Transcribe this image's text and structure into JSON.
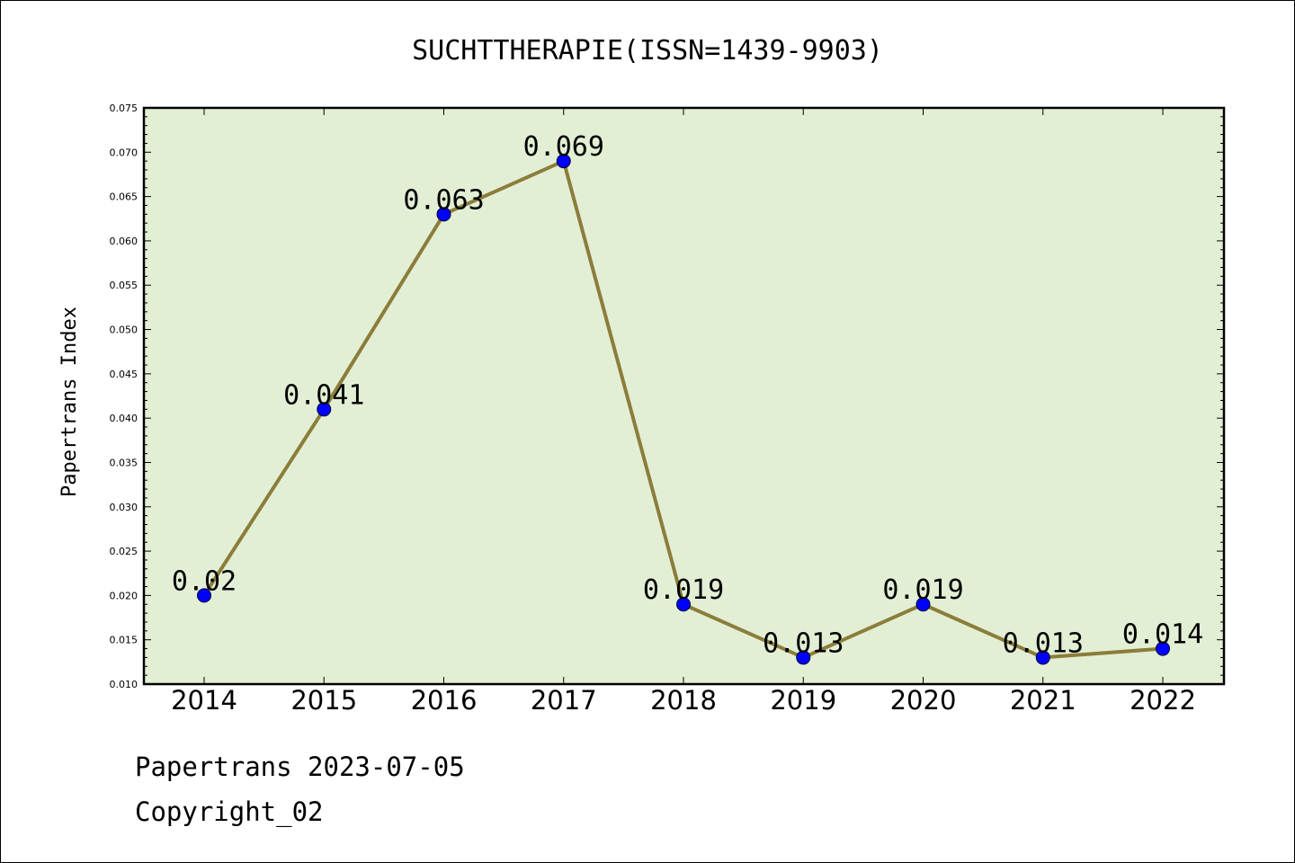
{
  "footer": {
    "line1": "Papertrans 2023-07-05",
    "line2": "Copyright_02"
  },
  "chart_data": {
    "type": "line",
    "title": "SUCHTTHERAPIE(ISSN=1439-9903)",
    "xlabel": "",
    "ylabel": "Papertrans Index",
    "categories": [
      "2014",
      "2015",
      "2016",
      "2017",
      "2018",
      "2019",
      "2020",
      "2021",
      "2022"
    ],
    "series": [
      {
        "values": [
          0.02,
          0.041,
          0.063,
          0.069,
          0.019,
          0.013,
          0.019,
          0.013,
          0.014
        ],
        "labels": [
          "0.02",
          "0.041",
          "0.063",
          "0.069",
          "0.019",
          "0.013",
          "0.019",
          "0.013",
          "0.014"
        ]
      }
    ],
    "ylim": [
      0.01,
      0.075
    ],
    "yticks": [
      "0.010",
      "0.015",
      "0.020",
      "0.025",
      "0.030",
      "0.035",
      "0.040",
      "0.045",
      "0.050",
      "0.055",
      "0.060",
      "0.065",
      "0.070",
      "0.075"
    ],
    "grid": false,
    "legend": "none",
    "colors": {
      "line": "#8b7d3a",
      "marker": "#0000ff",
      "plot_background": "#e2efd5"
    }
  }
}
